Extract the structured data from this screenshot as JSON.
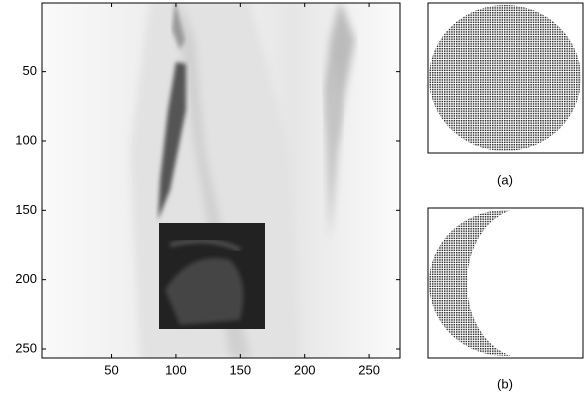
{
  "chart_data": {
    "type": "image",
    "xlim": [
      -4,
      274
    ],
    "ylim": [
      0.5,
      256.5
    ],
    "y_reversed": true,
    "xticks": [
      50,
      100,
      150,
      200,
      250
    ],
    "yticks": [
      50,
      100,
      150,
      200,
      250
    ],
    "panels": [
      {
        "caption": "(a)"
      },
      {
        "caption": "(b)"
      }
    ]
  }
}
